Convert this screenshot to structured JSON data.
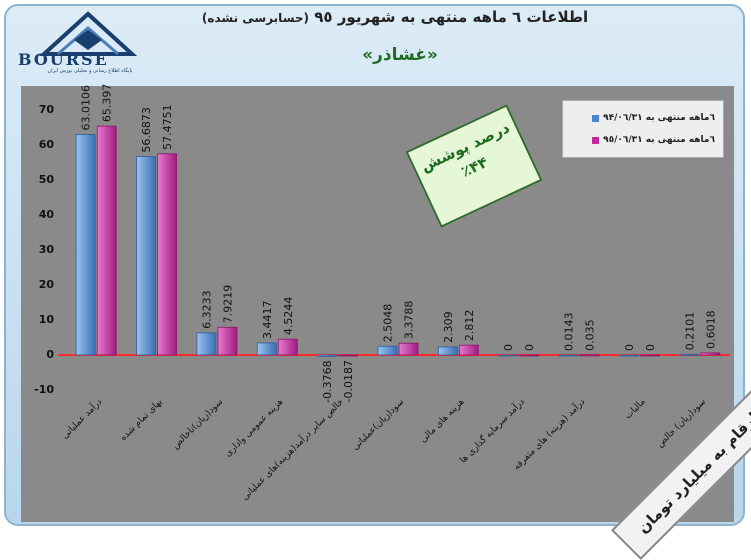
{
  "header": {
    "title": "اطلاعات ٦ ماهه منتهی به شهریور ٩٥",
    "title_note": "(حسابرسی نشده)",
    "company": "«غشاذر»"
  },
  "logo": {
    "name": "BOURSE",
    "subtitle": "پایگاه اطلاع رسانی و تحلیلی بورس ایران"
  },
  "stamp": {
    "line1": "درصد پوشش",
    "line2": "٪۴۴"
  },
  "banner": {
    "text": "ارقام به میلیارد تومان"
  },
  "colors": {
    "series1": "#4a86d0",
    "series2": "#c02a9a",
    "plot_bg": "#8a8a8a"
  },
  "chart_data": {
    "type": "bar",
    "categories": [
      "درآمد عملیاتی",
      "بهای تمام شده",
      "سود(زیان)ناخالص",
      "هزینه عمومی واداری",
      "خالص سایر درآمد(هزینه)های عملیاتی",
      "سود(زیان)عملیاتی",
      "هزینه های مالی",
      "درآمد سرمایه گذاری ها",
      "درآمد (هزینه) های متفرقه",
      "مالیات",
      "سود(زیان) خالص"
    ],
    "series": [
      {
        "name": "٦ماهه منتهی به ٩۴/٠٦/٣١",
        "values": [
          63.0106,
          56.6873,
          6.3233,
          3.4417,
          -0.3768,
          2.5048,
          2.309,
          0,
          0.0143,
          0,
          0.2101
        ],
        "labels": [
          "63.0106",
          "56.6873",
          "6.3233",
          "3.4417",
          "-0.3768",
          "2.5048",
          "2.309",
          "0",
          "0.0143",
          "0",
          "0.2101"
        ]
      },
      {
        "name": "٦ماهه منتهی به ٩٥/٠٦/٣١",
        "values": [
          65.397,
          57.4751,
          7.9219,
          4.5244,
          -0.0187,
          3.3788,
          2.812,
          0,
          0.035,
          0,
          0.6018
        ],
        "labels": [
          "65.397",
          "57.4751",
          "7.9219",
          "4.5244",
          "-0.0187",
          "3.3788",
          "2.812",
          "0",
          "0.035",
          "0",
          "0.6018"
        ]
      }
    ],
    "yticks": [
      "70",
      "60",
      "50",
      "40",
      "30",
      "20",
      "10",
      "0",
      "-10"
    ],
    "ylim": [
      -10,
      70
    ],
    "grid": false,
    "legend": "top-right"
  }
}
